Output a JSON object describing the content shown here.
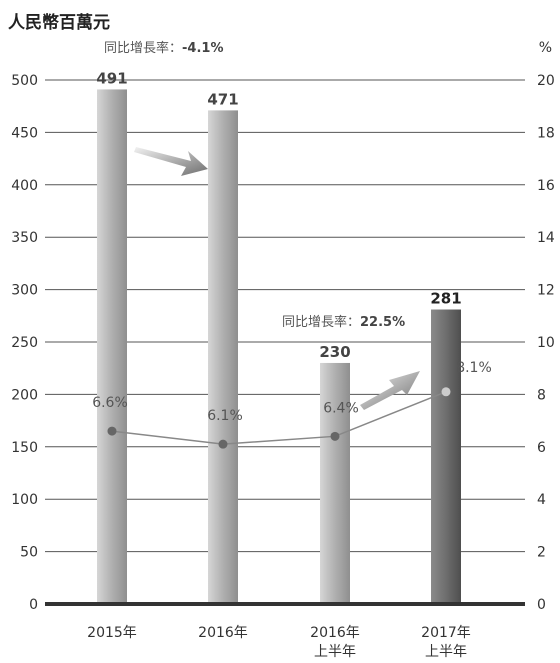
{
  "chart_data": {
    "type": "bar",
    "title": "",
    "left_unit": "人民幣百萬元",
    "right_unit": "%",
    "categories": [
      {
        "line1": "2015年",
        "line2": ""
      },
      {
        "line1": "2016年",
        "line2": ""
      },
      {
        "line1": "2016年",
        "line2": "上半年"
      },
      {
        "line1": "2017年",
        "line2": "上半年"
      }
    ],
    "series": [
      {
        "kind": "bar",
        "axis": "left",
        "values": [
          491,
          471,
          230,
          281
        ],
        "labels": [
          "491",
          "471",
          "230",
          "281"
        ]
      },
      {
        "kind": "line",
        "axis": "right",
        "values": [
          6.6,
          6.1,
          6.4,
          8.1
        ],
        "labels": [
          "6.6%",
          "6.1%",
          "6.4%",
          "8.1%"
        ]
      }
    ],
    "left_axis": {
      "min": 0,
      "max": 500,
      "ticks": [
        0,
        50,
        100,
        150,
        200,
        250,
        300,
        350,
        400,
        450,
        500
      ]
    },
    "right_axis": {
      "min": 0,
      "max": 20,
      "ticks": [
        0,
        2,
        4,
        6,
        8,
        10,
        12,
        14,
        16,
        18,
        20
      ]
    },
    "grid": true,
    "annotations": [
      {
        "prefix": "同比增長率：",
        "value": "-4.1%"
      },
      {
        "prefix": "同比增長率：",
        "value": "22.5%"
      }
    ],
    "colors": {
      "bar": "#a9a9a9",
      "bar_highlight": "#6b6b6b",
      "line": "#888888",
      "marker_dark": "#666666",
      "marker_light": "#cccccc",
      "axis": "#333333"
    }
  }
}
